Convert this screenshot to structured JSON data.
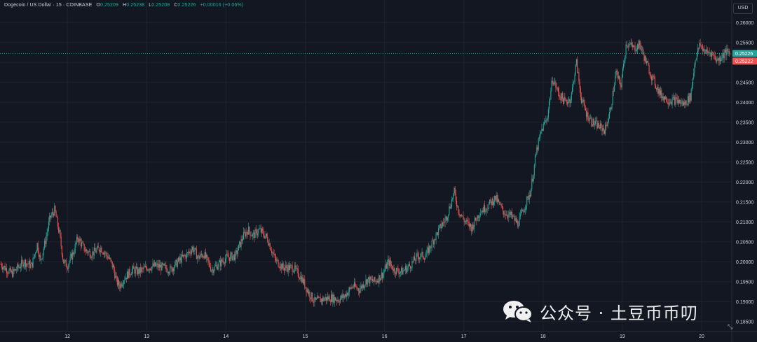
{
  "legend": {
    "symbol": "Dogecoin / US Dollar · 15 · COINBASE",
    "o_label": "O",
    "o_value": "0.25209",
    "h_label": "H",
    "h_value": "0.25238",
    "l_label": "L",
    "l_value": "0.25208",
    "c_label": "C",
    "c_value": "0.25226",
    "change": "+0.00016 (+0.06%)"
  },
  "currency_button": "USD",
  "price_tags": {
    "last": "0.25226",
    "second": "0.25222",
    "last_color": "#26a69a",
    "second_color": "#ef5350"
  },
  "colors": {
    "background": "#131722",
    "grid": "#1e222d",
    "up": "#26a69a",
    "down": "#ef5350",
    "text": "#d1d4dc"
  },
  "watermark": {
    "text": "公众号 · 土豆币币叨",
    "icon": "wechat-icon"
  },
  "chart_data": {
    "type": "candlestick",
    "title": "Dogecoin / US Dollar · 15 · COINBASE",
    "y_axis_position": "right",
    "y_ticks": [
      "0.26000",
      "0.25500",
      "0.25000",
      "0.24500",
      "0.24000",
      "0.23500",
      "0.23000",
      "0.22500",
      "0.22000",
      "0.21500",
      "0.21000",
      "0.20500",
      "0.20000",
      "0.19500",
      "0.19000",
      "0.18500"
    ],
    "ylim": [
      0.1825,
      0.2625
    ],
    "x_ticks": [
      {
        "label": "12",
        "day": 12
      },
      {
        "label": "13",
        "day": 13
      },
      {
        "label": "14",
        "day": 14
      },
      {
        "label": "15",
        "day": 15
      },
      {
        "label": "16",
        "day": 16
      },
      {
        "label": "17",
        "day": 17
      },
      {
        "label": "18",
        "day": 18
      },
      {
        "label": "19",
        "day": 19
      },
      {
        "label": "20",
        "day": 20
      }
    ],
    "xlim_days": [
      11.15,
      20.38
    ],
    "last_price": 0.25226,
    "grid": true,
    "price_path": [
      [
        11.15,
        0.1995
      ],
      [
        11.3,
        0.197
      ],
      [
        11.45,
        0.2
      ],
      [
        11.55,
        0.199
      ],
      [
        11.62,
        0.2045
      ],
      [
        11.66,
        0.2
      ],
      [
        11.72,
        0.205
      ],
      [
        11.78,
        0.211
      ],
      [
        11.84,
        0.213
      ],
      [
        11.9,
        0.207
      ],
      [
        11.95,
        0.2
      ],
      [
        12.0,
        0.199
      ],
      [
        12.08,
        0.2025
      ],
      [
        12.13,
        0.206
      ],
      [
        12.22,
        0.203
      ],
      [
        12.3,
        0.202
      ],
      [
        12.42,
        0.2035
      ],
      [
        12.52,
        0.201
      ],
      [
        12.58,
        0.1985
      ],
      [
        12.62,
        0.195
      ],
      [
        12.66,
        0.194
      ],
      [
        12.72,
        0.196
      ],
      [
        12.82,
        0.198
      ],
      [
        12.9,
        0.1975
      ],
      [
        13.0,
        0.1985
      ],
      [
        13.12,
        0.199
      ],
      [
        13.22,
        0.1985
      ],
      [
        13.3,
        0.198
      ],
      [
        13.42,
        0.2005
      ],
      [
        13.52,
        0.202
      ],
      [
        13.58,
        0.2035
      ],
      [
        13.65,
        0.201
      ],
      [
        13.72,
        0.202
      ],
      [
        13.82,
        0.198
      ],
      [
        13.92,
        0.1995
      ],
      [
        14.0,
        0.201
      ],
      [
        14.12,
        0.2015
      ],
      [
        14.22,
        0.2065
      ],
      [
        14.28,
        0.208
      ],
      [
        14.34,
        0.2065
      ],
      [
        14.42,
        0.208
      ],
      [
        14.52,
        0.206
      ],
      [
        14.62,
        0.2005
      ],
      [
        14.72,
        0.1985
      ],
      [
        14.85,
        0.1985
      ],
      [
        14.95,
        0.196
      ],
      [
        15.05,
        0.192
      ],
      [
        15.12,
        0.19
      ],
      [
        15.2,
        0.1905
      ],
      [
        15.32,
        0.191
      ],
      [
        15.42,
        0.1905
      ],
      [
        15.5,
        0.1915
      ],
      [
        15.6,
        0.194
      ],
      [
        15.68,
        0.193
      ],
      [
        15.78,
        0.1955
      ],
      [
        15.88,
        0.195
      ],
      [
        15.98,
        0.197
      ],
      [
        16.05,
        0.2
      ],
      [
        16.12,
        0.198
      ],
      [
        16.22,
        0.1975
      ],
      [
        16.32,
        0.199
      ],
      [
        16.42,
        0.2015
      ],
      [
        16.52,
        0.2015
      ],
      [
        16.62,
        0.2055
      ],
      [
        16.7,
        0.2085
      ],
      [
        16.78,
        0.211
      ],
      [
        16.88,
        0.2175
      ],
      [
        16.93,
        0.213
      ],
      [
        17.0,
        0.2105
      ],
      [
        17.1,
        0.2085
      ],
      [
        17.2,
        0.2125
      ],
      [
        17.3,
        0.214
      ],
      [
        17.4,
        0.216
      ],
      [
        17.5,
        0.2125
      ],
      [
        17.6,
        0.2115
      ],
      [
        17.68,
        0.2095
      ],
      [
        17.76,
        0.2135
      ],
      [
        17.84,
        0.2175
      ],
      [
        17.92,
        0.228
      ],
      [
        17.98,
        0.233
      ],
      [
        18.05,
        0.236
      ],
      [
        18.12,
        0.246
      ],
      [
        18.2,
        0.242
      ],
      [
        18.28,
        0.24
      ],
      [
        18.35,
        0.241
      ],
      [
        18.42,
        0.25
      ],
      [
        18.48,
        0.241
      ],
      [
        18.55,
        0.237
      ],
      [
        18.62,
        0.235
      ],
      [
        18.7,
        0.234
      ],
      [
        18.78,
        0.233
      ],
      [
        18.85,
        0.238
      ],
      [
        18.92,
        0.2475
      ],
      [
        18.98,
        0.244
      ],
      [
        19.05,
        0.255
      ],
      [
        19.15,
        0.2535
      ],
      [
        19.22,
        0.2545
      ],
      [
        19.3,
        0.25
      ],
      [
        19.38,
        0.246
      ],
      [
        19.48,
        0.242
      ],
      [
        19.58,
        0.2405
      ],
      [
        19.68,
        0.2405
      ],
      [
        19.78,
        0.2395
      ],
      [
        19.86,
        0.2415
      ],
      [
        19.92,
        0.251
      ],
      [
        19.98,
        0.2545
      ],
      [
        20.05,
        0.2525
      ],
      [
        20.12,
        0.2525
      ],
      [
        20.2,
        0.2505
      ],
      [
        20.3,
        0.2525
      ],
      [
        20.36,
        0.25226
      ]
    ]
  }
}
